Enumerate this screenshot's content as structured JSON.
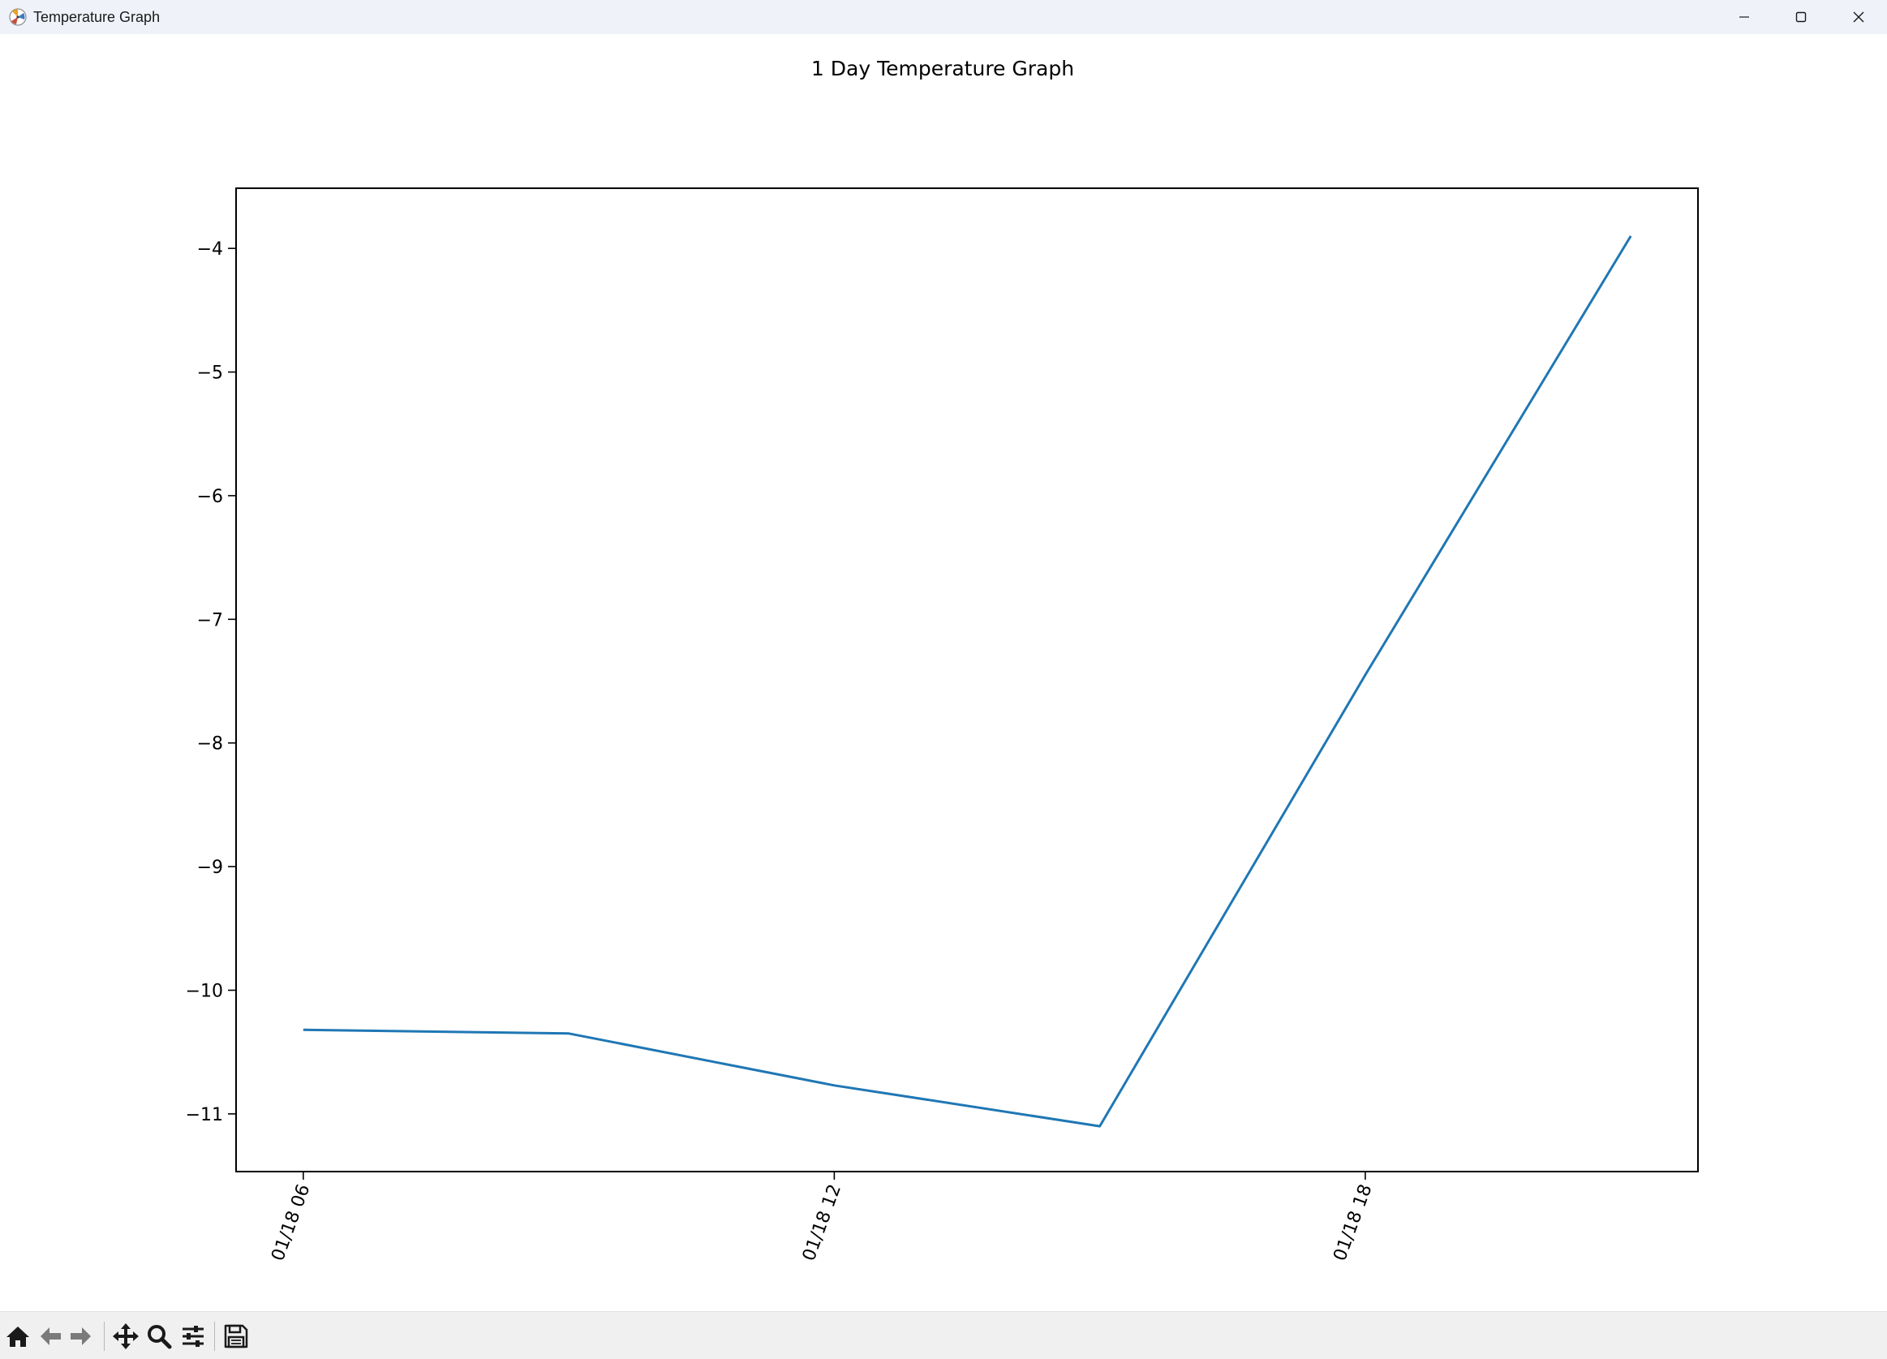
{
  "window": {
    "title": "Temperature Graph",
    "icons": {
      "app": "matplotlib-icon",
      "minimize": "minimize-icon",
      "maximize": "maximize-icon",
      "close": "close-icon"
    }
  },
  "toolbar": {
    "tools": [
      "home-icon",
      "back-arrow-icon",
      "forward-arrow-icon",
      "pan-icon",
      "zoom-icon",
      "configure-subplots-icon",
      "save-icon"
    ]
  },
  "colors": {
    "line": "#1f77b4",
    "titlebar": "#eff3f9",
    "toolbar": "#f0f0f0"
  },
  "chart_data": {
    "type": "line",
    "title": "1 Day Temperature Graph",
    "xlabel": "",
    "ylabel": "",
    "x_ticks": [
      "01/18 06",
      "01/18 12",
      "01/18 18"
    ],
    "y_ticks": [
      -4,
      -5,
      -6,
      -7,
      -8,
      -9,
      -10,
      -11
    ],
    "y_tick_labels": [
      "−4",
      "−5",
      "−6",
      "−7",
      "−8",
      "−9",
      "−10",
      "−11"
    ],
    "xlim": [
      "01/18 05:15",
      "01/18 21:45"
    ],
    "ylim": [
      -11.46,
      -3.52
    ],
    "grid": false,
    "legend": false,
    "series": [
      {
        "x": [
          "01/18 06:00",
          "01/18 09:00",
          "01/18 12:00",
          "01/18 15:00",
          "01/18 18:00",
          "01/18 21:00"
        ],
        "values": [
          -10.32,
          -10.35,
          -10.77,
          -11.1,
          -7.45,
          -3.9
        ]
      }
    ]
  }
}
